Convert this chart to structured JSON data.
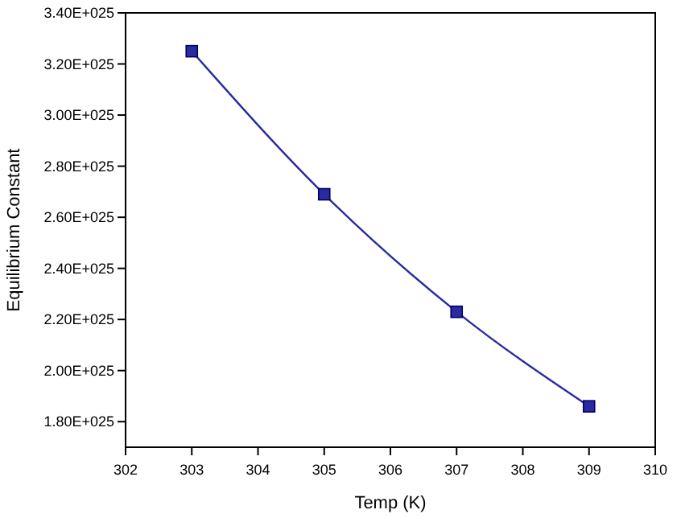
{
  "chart_data": {
    "type": "line",
    "xlabel": "Temp (K)",
    "ylabel": "Equilibrium Constant",
    "x": [
      303,
      305,
      307,
      309
    ],
    "series": [
      {
        "color": "#2b2ba0",
        "values": [
          3.25e+25,
          2.69e+25,
          2.23e+25,
          1.86e+25
        ]
      }
    ],
    "xlim": [
      302,
      310
    ],
    "xticks": [
      302,
      303,
      304,
      305,
      306,
      307,
      308,
      309,
      310
    ],
    "ylim": [
      1.7e+25,
      3.4e+25
    ],
    "yticks": [
      {
        "value": 1.8e+25,
        "label": "1.80E+025"
      },
      {
        "value": 2e+25,
        "label": "2.00E+025"
      },
      {
        "value": 2.2e+25,
        "label": "2.20E+025"
      },
      {
        "value": 2.4e+25,
        "label": "2.40E+025"
      },
      {
        "value": 2.6e+25,
        "label": "2.60E+025"
      },
      {
        "value": 2.8e+25,
        "label": "2.80E+025"
      },
      {
        "value": 3e+25,
        "label": "3.00E+025"
      },
      {
        "value": 3.2e+25,
        "label": "3.20E+025"
      },
      {
        "value": 3.4e+25,
        "label": "3.40E+025"
      }
    ],
    "marker": "square",
    "line_style": "solid",
    "grid": false
  }
}
